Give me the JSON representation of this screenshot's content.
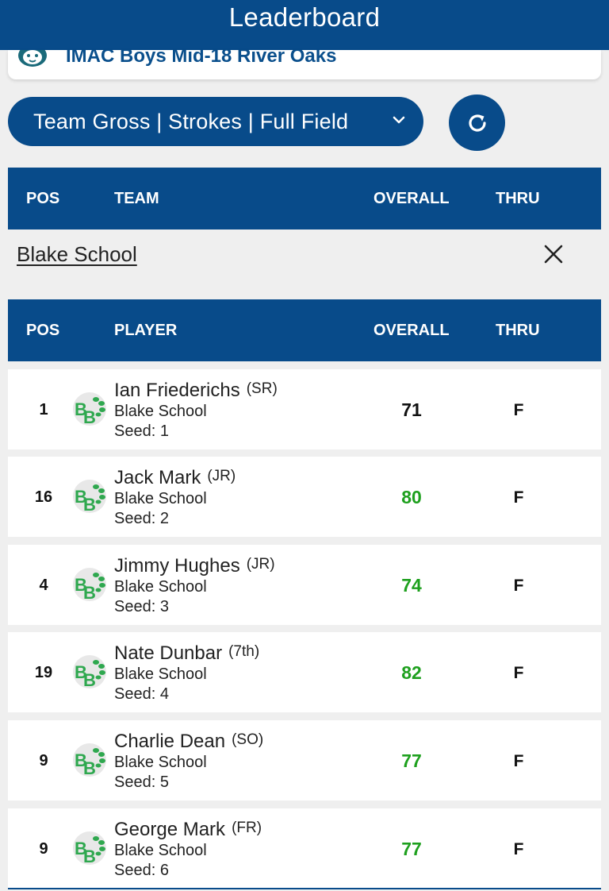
{
  "header": {
    "title": "Leaderboard"
  },
  "event": {
    "name": "IMAC Boys Mid-18 River Oaks",
    "logo_icon": "jaguar-logo-icon"
  },
  "view_selector": {
    "label": "Team Gross | Strokes | Full Field",
    "icon": "chevron-down-icon"
  },
  "refresh": {
    "icon": "refresh-icon"
  },
  "team_table": {
    "headers": {
      "pos": "POS",
      "team": "TEAM",
      "overall": "OVERALL",
      "thru": "THRU"
    },
    "selected_team": "Blake School",
    "close_icon": "close-icon"
  },
  "player_table": {
    "headers": {
      "pos": "POS",
      "player": "PLAYER",
      "overall": "OVERALL",
      "thru": "THRU"
    },
    "rows": [
      {
        "pos": "1",
        "name": "Ian Friederichs",
        "class": "(SR)",
        "team": "Blake School",
        "seed": "Seed: 1",
        "overall": "71",
        "thru": "F"
      },
      {
        "pos": "16",
        "name": "Jack Mark",
        "class": "(JR)",
        "team": "Blake School",
        "seed": "Seed: 2",
        "overall": "80",
        "thru": "F"
      },
      {
        "pos": "4",
        "name": "Jimmy Hughes",
        "class": "(JR)",
        "team": "Blake School",
        "seed": "Seed: 3",
        "overall": "74",
        "thru": "F"
      },
      {
        "pos": "19",
        "name": "Nate Dunbar",
        "class": "(7th)",
        "team": "Blake School",
        "seed": "Seed: 4",
        "overall": "82",
        "thru": "F"
      },
      {
        "pos": "9",
        "name": "Charlie Dean",
        "class": "(SO)",
        "team": "Blake School",
        "seed": "Seed: 5",
        "overall": "77",
        "thru": "F"
      },
      {
        "pos": "9",
        "name": "George Mark",
        "class": "(FR)",
        "team": "Blake School",
        "seed": "Seed: 6",
        "overall": "77",
        "thru": "F"
      }
    ]
  },
  "colors": {
    "brand": "#084b8a",
    "over_par": "#1ea01e",
    "even": "#111111",
    "team_logo": "#2fa84f"
  }
}
